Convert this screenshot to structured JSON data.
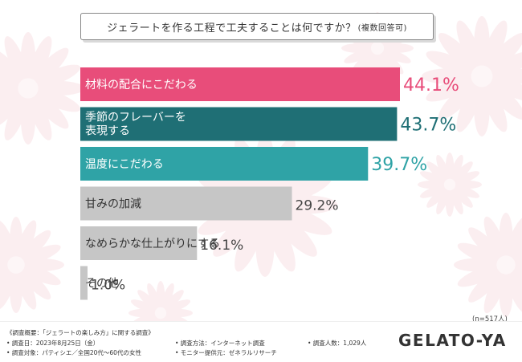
{
  "title": "ジェラートを作る工程で工夫することは何ですか？",
  "title_sub": "(複数回答可)",
  "sample_note": "(n=517人)",
  "footer": {
    "survey_name": "《調査概要：「ジェラートの楽しみ方」に関する調査》",
    "date": "• 調査日：2023年8月25日（金）",
    "target": "• 調査対象：パティシエ／全国20代〜60代の女性",
    "method": "• 調査方法：インターネット調査",
    "provider": "• モニター提供元：ゼネラルリサーチ",
    "count": "• 調査人数：1,029人",
    "logo": "GELATO-YA"
  },
  "colors": {
    "pink": "#e84d7a",
    "dark_teal": "#1f6f75",
    "teal": "#2fa3a6",
    "gray": "#c6c6c6"
  },
  "chart_data": {
    "type": "bar",
    "orientation": "horizontal",
    "categories": [
      "材料の配合にこだわる",
      "季節のフレーバーを表現する",
      "温度にこだわる",
      "甘みの加減",
      "なめらかな仕上がりにする",
      "その他"
    ],
    "labels": [
      [
        "材料の配合にこだわる"
      ],
      [
        "季節のフレーバーを",
        "表現する"
      ],
      [
        "温度にこだわる"
      ],
      [
        "甘みの加減"
      ],
      [
        "なめらかな仕上がりにする"
      ],
      [
        "その他"
      ]
    ],
    "values": [
      44.1,
      43.7,
      39.7,
      29.2,
      16.1,
      1.0
    ],
    "value_labels": [
      "44.1%",
      "43.7%",
      "39.7%",
      "29.2%",
      "16.1%",
      "1.0%"
    ],
    "bar_colors": [
      "#e84d7a",
      "#1f6f75",
      "#2fa3a6",
      "#c6c6c6",
      "#c6c6c6",
      "#c6c6c6"
    ],
    "label_colors": [
      "#ffffff",
      "#ffffff",
      "#ffffff",
      "#333333",
      "#333333",
      "#333333"
    ],
    "value_colors": [
      "#e84d7a",
      "#1f6f75",
      "#2fa3a6",
      "#444444",
      "#444444",
      "#444444"
    ],
    "xlim": [
      0,
      50
    ],
    "grid": false,
    "legend": "none"
  }
}
